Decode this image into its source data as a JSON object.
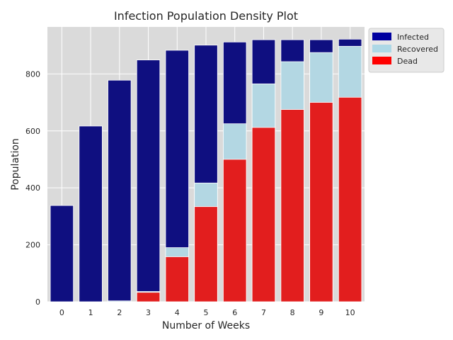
{
  "chart_data": {
    "type": "bar",
    "stacked": "overlay",
    "title": "Infection Population Density Plot",
    "xlabel": "Number of Weeks",
    "ylabel": "Population",
    "ylim": [
      0,
      965
    ],
    "yticks": [
      0,
      200,
      400,
      600,
      800
    ],
    "categories": [
      "0",
      "1",
      "2",
      "3",
      "4",
      "5",
      "6",
      "7",
      "8",
      "9",
      "10"
    ],
    "grid": true,
    "legend_position": "outside top-right",
    "series": [
      {
        "name": "Infected",
        "color": "#0f0f80",
        "legend_color": "#0000a0",
        "values": [
          338,
          617,
          778,
          849,
          883,
          901,
          912,
          920,
          920,
          920,
          922
        ]
      },
      {
        "name": "Recovered",
        "color": "#b3d7e3",
        "legend_color": "#add8e6",
        "values": [
          0,
          0,
          3,
          36,
          190,
          417,
          625,
          765,
          843,
          875,
          897
        ]
      },
      {
        "name": "Dead",
        "color": "#e21e1e",
        "legend_color": "#ff0000",
        "values": [
          0,
          0,
          0,
          33,
          158,
          334,
          500,
          612,
          675,
          700,
          718
        ]
      }
    ]
  }
}
